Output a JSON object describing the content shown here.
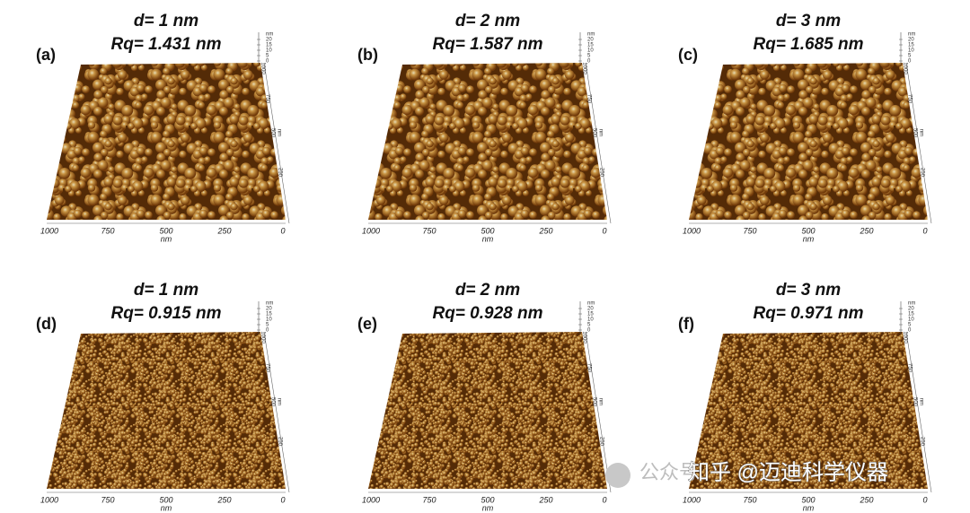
{
  "panels": [
    {
      "label": "(a)",
      "d": "d= 1 nm",
      "rq": "Rq= 1.431 nm",
      "x_ticks": [
        "1000",
        "750",
        "500",
        "250",
        "0"
      ],
      "x_unit": "nm",
      "y_ticks": [
        "250",
        "500",
        "750",
        "1000"
      ],
      "y_unit": "nm",
      "z_unit": "nm",
      "z_ticks": [
        "20",
        "15",
        "10",
        "5",
        "0"
      ]
    },
    {
      "label": "(b)",
      "d": "d= 2 nm",
      "rq": "Rq= 1.587 nm",
      "x_ticks": [
        "1000",
        "750",
        "500",
        "250",
        "0"
      ],
      "x_unit": "nm",
      "y_ticks": [
        "250",
        "500",
        "750",
        "1000"
      ],
      "y_unit": "nm",
      "z_unit": "nm",
      "z_ticks": [
        "20",
        "15",
        "10",
        "5",
        "0"
      ]
    },
    {
      "label": "(c)",
      "d": "d= 3 nm",
      "rq": "Rq= 1.685 nm",
      "x_ticks": [
        "1000",
        "750",
        "500",
        "250",
        "0"
      ],
      "x_unit": "nm",
      "y_ticks": [
        "250",
        "500",
        "750",
        "1000"
      ],
      "y_unit": "nm",
      "z_unit": "nm",
      "z_ticks": [
        "20",
        "15",
        "10",
        "5",
        "0"
      ]
    },
    {
      "label": "(d)",
      "d": "d= 1 nm",
      "rq": "Rq= 0.915 nm",
      "x_ticks": [
        "1000",
        "750",
        "500",
        "250",
        "0"
      ],
      "x_unit": "nm",
      "y_ticks": [
        "250",
        "500",
        "750",
        "1000"
      ],
      "y_unit": "nm",
      "z_unit": "nm",
      "z_ticks": [
        "20",
        "15",
        "10",
        "5",
        "0"
      ]
    },
    {
      "label": "(e)",
      "d": "d= 2 nm",
      "rq": "Rq= 0.928 nm",
      "x_ticks": [
        "1000",
        "750",
        "500",
        "250",
        "0"
      ],
      "x_unit": "nm",
      "y_ticks": [
        "250",
        "500",
        "750",
        "1000"
      ],
      "y_unit": "nm",
      "z_unit": "nm",
      "z_ticks": [
        "20",
        "15",
        "10",
        "5",
        "0"
      ]
    },
    {
      "label": "(f)",
      "d": "d= 3 nm",
      "rq": "Rq= 0.971 nm",
      "x_ticks": [
        "1000",
        "750",
        "500",
        "250",
        "0"
      ],
      "x_unit": "nm",
      "y_ticks": [
        "250",
        "500",
        "750",
        "1000"
      ],
      "y_unit": "nm",
      "z_unit": "nm",
      "z_ticks": [
        "20",
        "15",
        "10",
        "5",
        "0"
      ]
    }
  ],
  "watermark": {
    "account": "公众号",
    "source": "知乎 @迈迪科学仪器"
  }
}
